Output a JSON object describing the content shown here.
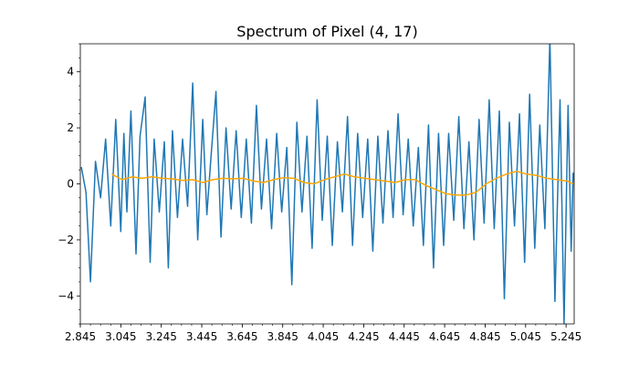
{
  "chart_data": {
    "type": "line",
    "title": "Spectrum of Pixel (4, 17)",
    "xlabel": "",
    "ylabel": "",
    "xlim": [
      2.845,
      5.285
    ],
    "ylim": [
      -5,
      5
    ],
    "x_ticks": [
      "2.845",
      "3.045",
      "3.245",
      "3.445",
      "3.645",
      "3.845",
      "4.045",
      "4.245",
      "4.445",
      "4.645",
      "4.845",
      "5.045",
      "5.245"
    ],
    "y_ticks": [
      "−4",
      "−2",
      "0",
      "2",
      "4"
    ],
    "grid": false,
    "series": [
      {
        "color": "#1f77b4",
        "x": [
          2.85,
          2.873,
          2.895,
          2.92,
          2.945,
          2.97,
          2.995,
          3.02,
          3.045,
          3.06,
          3.075,
          3.095,
          3.12,
          3.14,
          3.165,
          3.19,
          3.21,
          3.235,
          3.26,
          3.28,
          3.3,
          3.325,
          3.35,
          3.375,
          3.4,
          3.425,
          3.45,
          3.47,
          3.49,
          3.515,
          3.54,
          3.565,
          3.59,
          3.615,
          3.64,
          3.665,
          3.69,
          3.715,
          3.74,
          3.765,
          3.79,
          3.815,
          3.84,
          3.865,
          3.89,
          3.915,
          3.94,
          3.965,
          3.99,
          4.015,
          4.04,
          4.065,
          4.09,
          4.115,
          4.14,
          4.165,
          4.19,
          4.215,
          4.24,
          4.265,
          4.29,
          4.315,
          4.34,
          4.365,
          4.39,
          4.415,
          4.44,
          4.465,
          4.49,
          4.515,
          4.54,
          4.565,
          4.59,
          4.615,
          4.64,
          4.665,
          4.69,
          4.715,
          4.74,
          4.765,
          4.79,
          4.815,
          4.84,
          4.865,
          4.89,
          4.915,
          4.94,
          4.965,
          4.99,
          5.015,
          5.04,
          5.065,
          5.09,
          5.115,
          5.14,
          5.165,
          5.19,
          5.215,
          5.235,
          5.255,
          5.27,
          5.28
        ],
        "y": [
          0.6,
          -0.3,
          -3.5,
          0.8,
          -0.5,
          1.6,
          -1.5,
          2.3,
          -1.7,
          1.8,
          -1.0,
          2.6,
          -2.5,
          1.7,
          3.1,
          -2.8,
          1.6,
          -1.0,
          1.5,
          -3.0,
          1.9,
          -1.2,
          1.6,
          -0.8,
          3.6,
          -2.0,
          2.3,
          -1.1,
          0.9,
          3.3,
          -1.9,
          2.0,
          -0.9,
          1.9,
          -1.2,
          1.6,
          -1.4,
          2.8,
          -0.9,
          1.6,
          -1.6,
          1.8,
          -1.0,
          1.3,
          -3.6,
          2.2,
          -1.0,
          1.7,
          -2.3,
          3.0,
          -1.3,
          1.7,
          -2.2,
          1.5,
          -1.0,
          2.4,
          -2.2,
          1.8,
          -1.2,
          1.6,
          -2.4,
          1.7,
          -1.4,
          1.9,
          -1.2,
          2.5,
          -1.1,
          1.6,
          -1.5,
          1.3,
          -2.2,
          2.1,
          -3.0,
          1.8,
          -2.2,
          1.8,
          -1.3,
          2.4,
          -1.6,
          1.5,
          -2.0,
          2.3,
          -1.4,
          3.0,
          -1.6,
          2.6,
          -4.1,
          2.2,
          -1.5,
          2.5,
          -2.8,
          3.2,
          -2.3,
          2.1,
          -1.6,
          5.2,
          -4.2,
          3.0,
          -5.0,
          2.8,
          -2.4,
          0.4
        ]
      },
      {
        "color": "#ffa500",
        "x": [
          3.0,
          3.05,
          3.1,
          3.15,
          3.2,
          3.25,
          3.3,
          3.35,
          3.4,
          3.45,
          3.5,
          3.55,
          3.6,
          3.65,
          3.7,
          3.75,
          3.8,
          3.85,
          3.9,
          3.95,
          4.0,
          4.05,
          4.1,
          4.15,
          4.2,
          4.25,
          4.3,
          4.35,
          4.4,
          4.45,
          4.5,
          4.55,
          4.6,
          4.65,
          4.7,
          4.75,
          4.8,
          4.85,
          4.9,
          4.95,
          5.0,
          5.05,
          5.1,
          5.15,
          5.2,
          5.25,
          5.28
        ],
        "y": [
          0.35,
          0.15,
          0.25,
          0.2,
          0.25,
          0.2,
          0.18,
          0.12,
          0.15,
          0.05,
          0.15,
          0.2,
          0.18,
          0.2,
          0.1,
          0.05,
          0.15,
          0.22,
          0.2,
          0.05,
          0.0,
          0.15,
          0.25,
          0.35,
          0.25,
          0.2,
          0.15,
          0.1,
          0.05,
          0.15,
          0.15,
          -0.05,
          -0.2,
          -0.35,
          -0.4,
          -0.4,
          -0.3,
          0.0,
          0.2,
          0.35,
          0.45,
          0.35,
          0.3,
          0.2,
          0.15,
          0.1,
          0.0
        ]
      }
    ]
  }
}
